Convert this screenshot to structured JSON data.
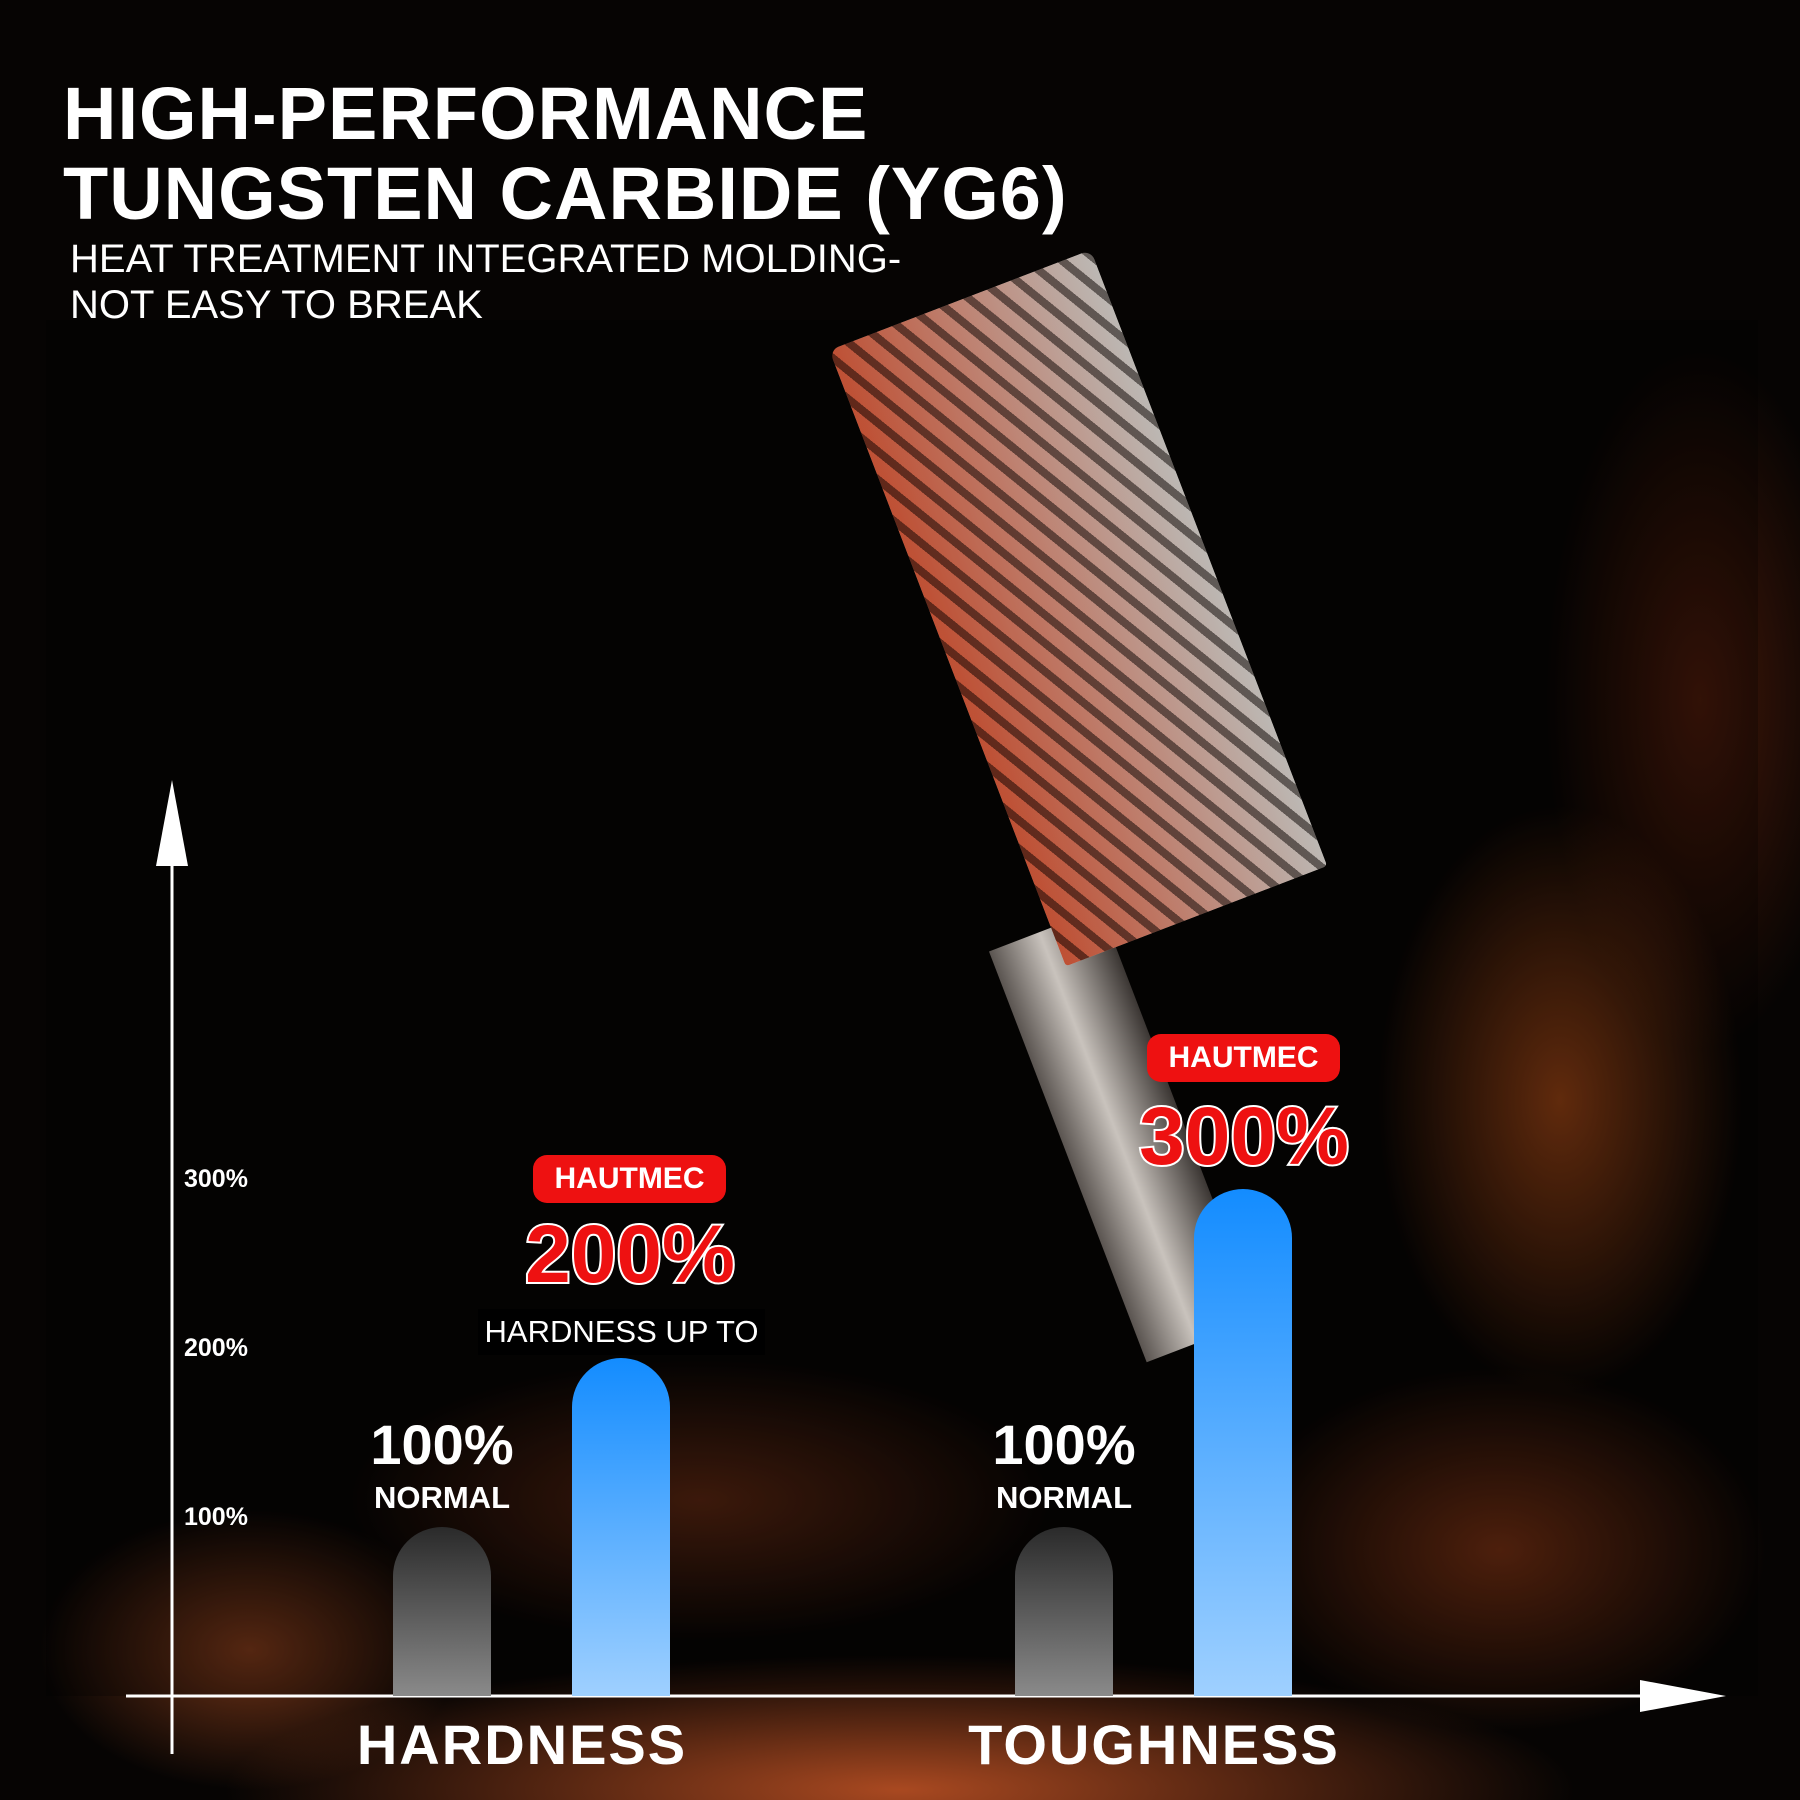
{
  "header": {
    "title_line1": "HIGH-PERFORMANCE",
    "title_line2": "TUNGSTEN CARBIDE (YG6)",
    "subtitle_line1": "HEAT TREATMENT INTEGRATED MOLDING-",
    "subtitle_line2": "NOT EASY TO BREAK"
  },
  "chart_data": {
    "type": "bar",
    "categories": [
      "HARDNESS",
      "TOUGHNESS"
    ],
    "series": [
      {
        "name": "NORMAL",
        "values": [
          100,
          100
        ],
        "color": "#3a3a3a"
      },
      {
        "name": "HAUTMEC",
        "values": [
          200,
          300
        ],
        "color": "#1a8fff"
      }
    ],
    "yticks": [
      "100%",
      "200%",
      "300%"
    ],
    "ylim": [
      0,
      300
    ],
    "labels": {
      "normal_value": "100%",
      "normal_name": "NORMAL",
      "brand": "HAUTMEC",
      "hardness_value": "200%",
      "toughness_value": "300%",
      "hardness_caption": "HARDNESS UP TO"
    }
  }
}
